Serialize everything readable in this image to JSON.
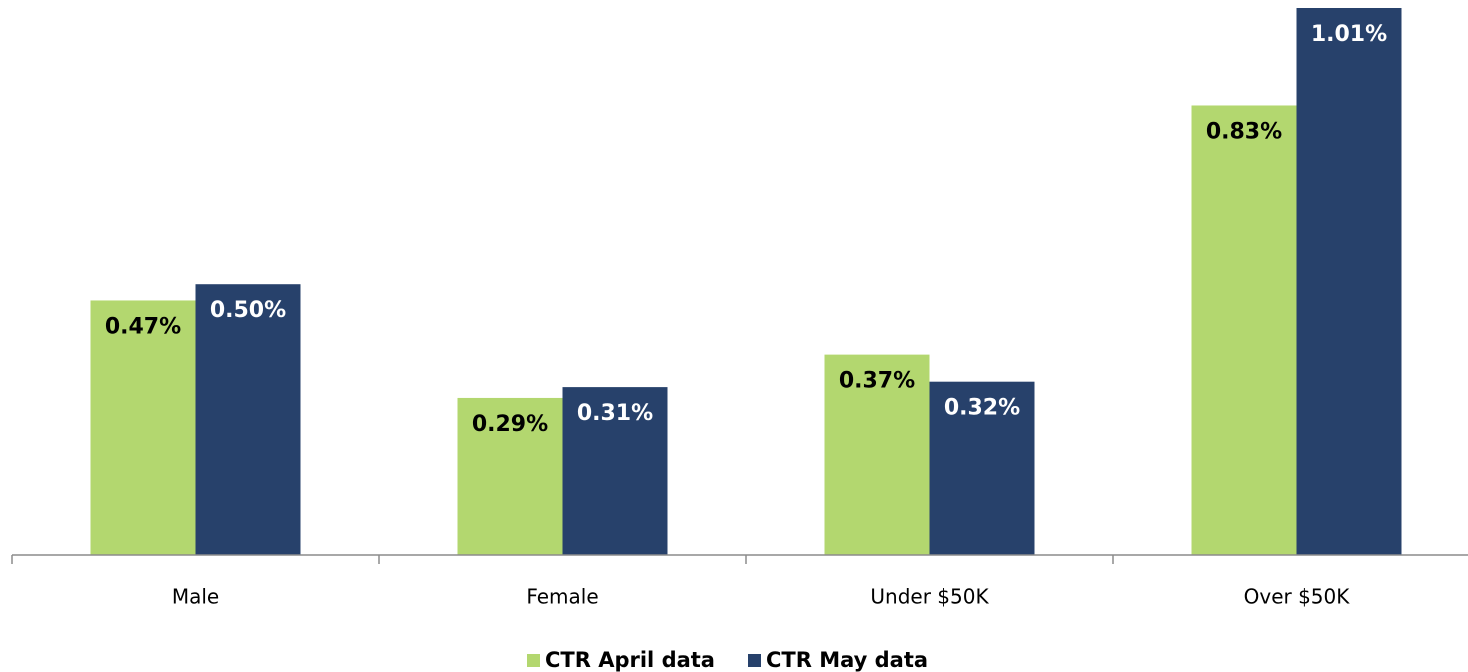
{
  "chart_data": {
    "type": "bar",
    "categories": [
      "Male",
      "Female",
      "Under $50K",
      "Over $50K"
    ],
    "series": [
      {
        "name": "CTR April data",
        "color": "#b3d76f",
        "label_color": "#000000",
        "values": [
          0.47,
          0.29,
          0.37,
          0.83
        ],
        "value_labels": [
          "0.47%",
          "0.29%",
          "0.37%",
          "0.83%"
        ]
      },
      {
        "name": "CTR May data",
        "color": "#27416b",
        "label_color": "#ffffff",
        "values": [
          0.5,
          0.31,
          0.32,
          1.01
        ],
        "value_labels": [
          "0.50%",
          "0.31%",
          "0.32%",
          "1.01%"
        ]
      }
    ],
    "legend": "bottom"
  }
}
